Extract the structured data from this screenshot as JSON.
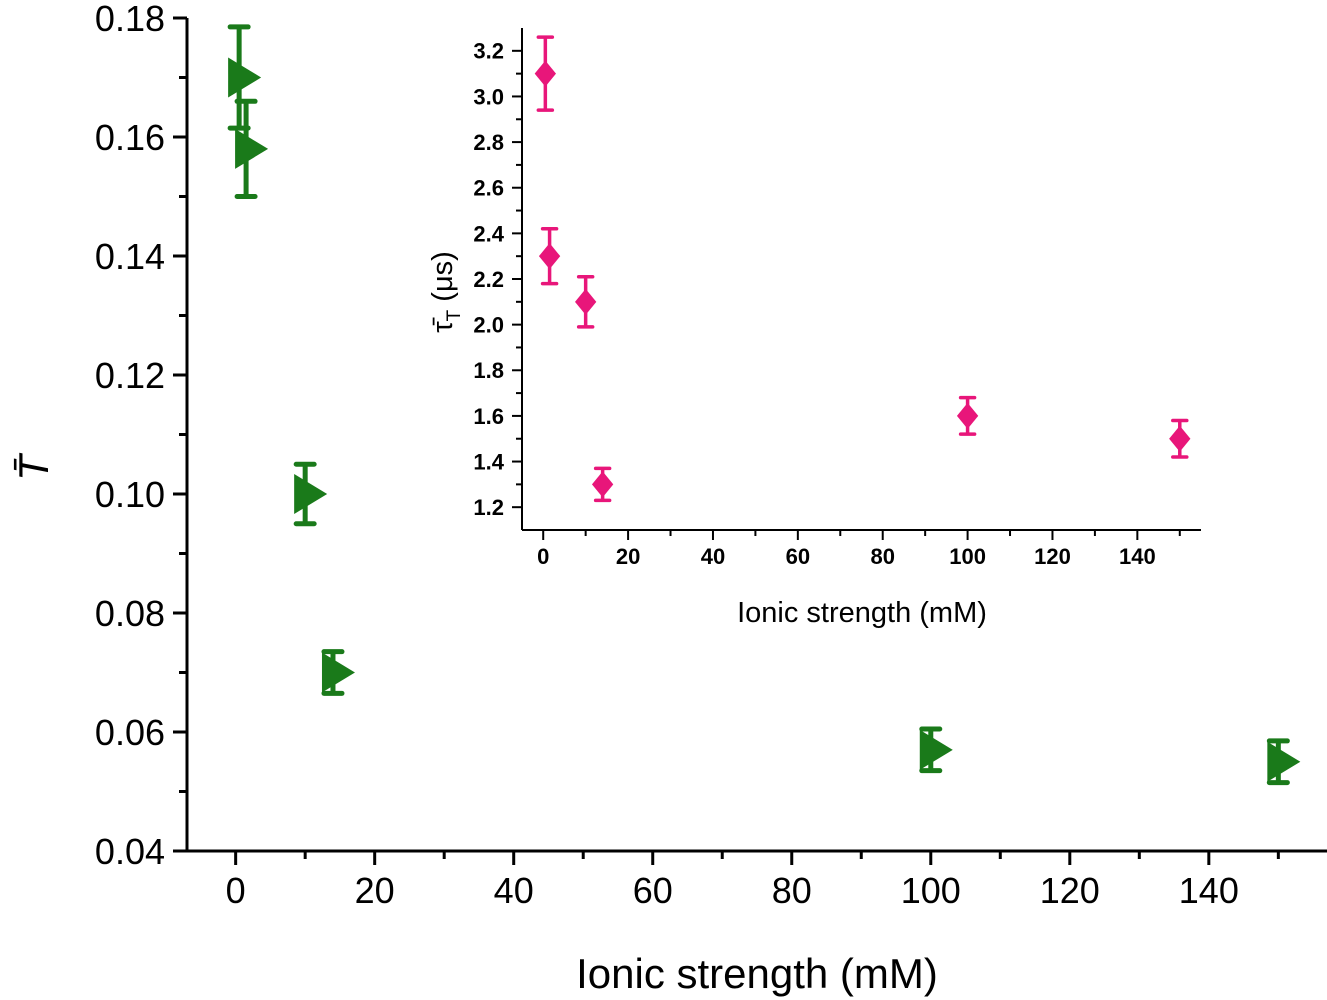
{
  "chart_data": [
    {
      "type": "scatter",
      "name": "main",
      "xlabel": "Ionic strength (mM)",
      "ylabel": "T̄",
      "xlim": [
        -7,
        157
      ],
      "ylim": [
        0.04,
        0.18
      ],
      "xticks": [
        "0",
        "20",
        "40",
        "60",
        "80",
        "100",
        "120",
        "140"
      ],
      "yticks": [
        "0.04",
        "0.06",
        "0.08",
        "0.10",
        "0.12",
        "0.14",
        "0.16",
        "0.18"
      ],
      "series": [
        {
          "name": "T",
          "color": "#1a7a1a",
          "marker": "triangle-right",
          "x": [
            0.5,
            1.5,
            10,
            14,
            100,
            150
          ],
          "y": [
            0.17,
            0.158,
            0.1,
            0.07,
            0.057,
            0.055
          ],
          "err": [
            0.0085,
            0.008,
            0.005,
            0.0035,
            0.0035,
            0.0035
          ]
        }
      ]
    },
    {
      "type": "scatter",
      "name": "inset",
      "xlabel": "Ionic strength (mM)",
      "ylabel": "τ̄",
      "ylabel_sub": "T",
      "ylabel_unit": "(μs)",
      "xlim": [
        -5,
        155
      ],
      "ylim": [
        1.1,
        3.3
      ],
      "xticks": [
        "0",
        "20",
        "40",
        "60",
        "80",
        "100",
        "120",
        "140"
      ],
      "yticks": [
        "1.2",
        "1.4",
        "1.6",
        "1.8",
        "2.0",
        "2.2",
        "2.4",
        "2.6",
        "2.8",
        "3.0",
        "3.2"
      ],
      "series": [
        {
          "name": "tau_T",
          "color": "#e8167a",
          "marker": "diamond",
          "x": [
            0.5,
            1.5,
            10,
            14,
            100,
            150
          ],
          "y": [
            3.1,
            2.3,
            2.1,
            1.3,
            1.6,
            1.5
          ],
          "err": [
            0.16,
            0.12,
            0.11,
            0.07,
            0.08,
            0.08
          ]
        }
      ]
    }
  ]
}
